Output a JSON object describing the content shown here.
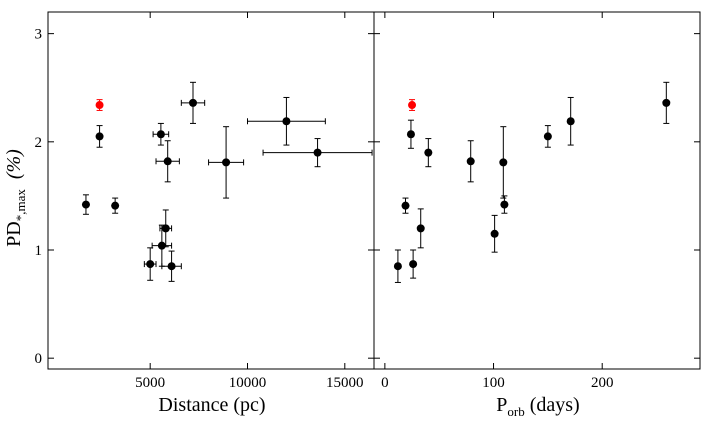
{
  "chart_data": [
    {
      "type": "scatter",
      "panel": "left",
      "xlabel": "Distance (pc)",
      "ylabel_main": "PD",
      "ylabel_sub": "*,max",
      "ylabel_unit": "(%)",
      "xlim": [
        -250,
        16500
      ],
      "ylim": [
        -0.1,
        3.2
      ],
      "xticks": [
        5000,
        10000,
        15000
      ],
      "xtick_labels": [
        "5000",
        "10000",
        "15000"
      ],
      "yticks": [
        0,
        1,
        2,
        3
      ],
      "ytick_labels": [
        "0",
        "1",
        "2",
        "3"
      ],
      "points": [
        {
          "x": 1700,
          "y": 1.42,
          "xerr": 0,
          "yerr": 0.09,
          "color": "black"
        },
        {
          "x": 2400,
          "y": 2.05,
          "xerr": 0,
          "yerr": 0.1,
          "color": "black"
        },
        {
          "x": 3200,
          "y": 1.41,
          "xerr": 0,
          "yerr": 0.07,
          "color": "black"
        },
        {
          "x": 2400,
          "y": 2.34,
          "xerr": 0,
          "yerr": 0.05,
          "color": "red"
        },
        {
          "x": 5000,
          "y": 0.87,
          "xerr": 300,
          "yerr": 0.15,
          "color": "black"
        },
        {
          "x": 5550,
          "y": 2.07,
          "xerr": 400,
          "yerr": 0.1,
          "color": "black"
        },
        {
          "x": 5600,
          "y": 1.04,
          "xerr": 500,
          "yerr": 0.19,
          "color": "black"
        },
        {
          "x": 5800,
          "y": 1.2,
          "xerr": 300,
          "yerr": 0.17,
          "color": "black"
        },
        {
          "x": 5900,
          "y": 1.82,
          "xerr": 600,
          "yerr": 0.19,
          "color": "black"
        },
        {
          "x": 6100,
          "y": 0.85,
          "xerr": 500,
          "yerr": 0.14,
          "color": "black"
        },
        {
          "x": 7200,
          "y": 2.36,
          "xerr": 600,
          "yerr": 0.19,
          "color": "black"
        },
        {
          "x": 8900,
          "y": 1.81,
          "xerr": 900,
          "yerr": 0.33,
          "color": "black"
        },
        {
          "x": 12000,
          "y": 2.19,
          "xerr": 2000,
          "yerr": 0.22,
          "color": "black"
        },
        {
          "x": 13600,
          "y": 1.9,
          "xerr": 2800,
          "yerr": 0.13,
          "color": "black"
        }
      ]
    },
    {
      "type": "scatter",
      "panel": "right",
      "xlabel_main": "P",
      "xlabel_sub": "orb",
      "xlabel_unit": "(days)",
      "xlim": [
        -10,
        290
      ],
      "ylim": [
        -0.1,
        3.2
      ],
      "xticks": [
        0,
        100,
        200
      ],
      "xtick_labels": [
        "0",
        "100",
        "200"
      ],
      "yticks": [
        0,
        1,
        2,
        3
      ],
      "points": [
        {
          "x": 12,
          "y": 0.85,
          "yerr": 0.15,
          "color": "black"
        },
        {
          "x": 19,
          "y": 1.41,
          "yerr": 0.07,
          "color": "black"
        },
        {
          "x": 24,
          "y": 2.07,
          "yerr": 0.13,
          "color": "black"
        },
        {
          "x": 25,
          "y": 2.34,
          "yerr": 0.05,
          "color": "red"
        },
        {
          "x": 26,
          "y": 0.87,
          "yerr": 0.13,
          "color": "black"
        },
        {
          "x": 33,
          "y": 1.2,
          "yerr": 0.18,
          "color": "black"
        },
        {
          "x": 40,
          "y": 1.9,
          "yerr": 0.13,
          "color": "black"
        },
        {
          "x": 79,
          "y": 1.82,
          "yerr": 0.19,
          "color": "black"
        },
        {
          "x": 101,
          "y": 1.15,
          "yerr": 0.17,
          "color": "black"
        },
        {
          "x": 109,
          "y": 1.81,
          "yerr": 0.33,
          "color": "black"
        },
        {
          "x": 110,
          "y": 1.42,
          "yerr": 0.08,
          "color": "black"
        },
        {
          "x": 150,
          "y": 2.05,
          "yerr": 0.1,
          "color": "black"
        },
        {
          "x": 171,
          "y": 2.19,
          "yerr": 0.22,
          "color": "black"
        },
        {
          "x": 259,
          "y": 2.36,
          "yerr": 0.19,
          "color": "black"
        }
      ]
    }
  ],
  "colors": {
    "black": "#000000",
    "red": "#ff0000"
  }
}
